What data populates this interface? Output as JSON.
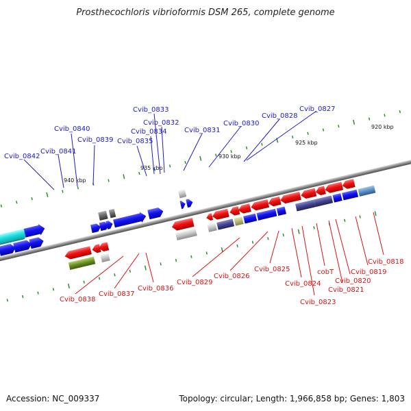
{
  "title": "Prosthecochloris vibrioformis DSM 265, complete genome",
  "footer": {
    "accession": "Accession: NC_009337",
    "summary": "Topology: circular; Length: 1,966,858 bp; Genes: 1,803"
  },
  "scale_ticks": [
    "940 kbp",
    "935 kbp",
    "930 kbp",
    "925 kbp",
    "920 kbp"
  ],
  "top_genes": [
    "Cvib_0842",
    "Cvib_0841",
    "Cvib_0840",
    "Cvib_0839",
    "Cvib_0835",
    "Cvib_0834",
    "Cvib_0833",
    "Cvib_0832",
    "Cvib_0831",
    "Cvib_0830",
    "Cvib_0828",
    "Cvib_0827"
  ],
  "bottom_genes": [
    "Cvib_0838",
    "Cvib_0837",
    "Cvib_0836",
    "Cvib_0829",
    "Cvib_0826",
    "Cvib_0825",
    "Cvib_0824",
    "Cvib_0823",
    "cobT",
    "Cvib_0821",
    "Cvib_0820",
    "Cvib_0819",
    "Cvib_0818"
  ],
  "colors": {
    "forward_strand": "#1010ee",
    "reverse_strand": "#ee1111",
    "cyan_gene": "#20e0e0",
    "olive_gene": "#6b8e23",
    "backbone": "#808080",
    "tick": "#2e8b2e"
  }
}
